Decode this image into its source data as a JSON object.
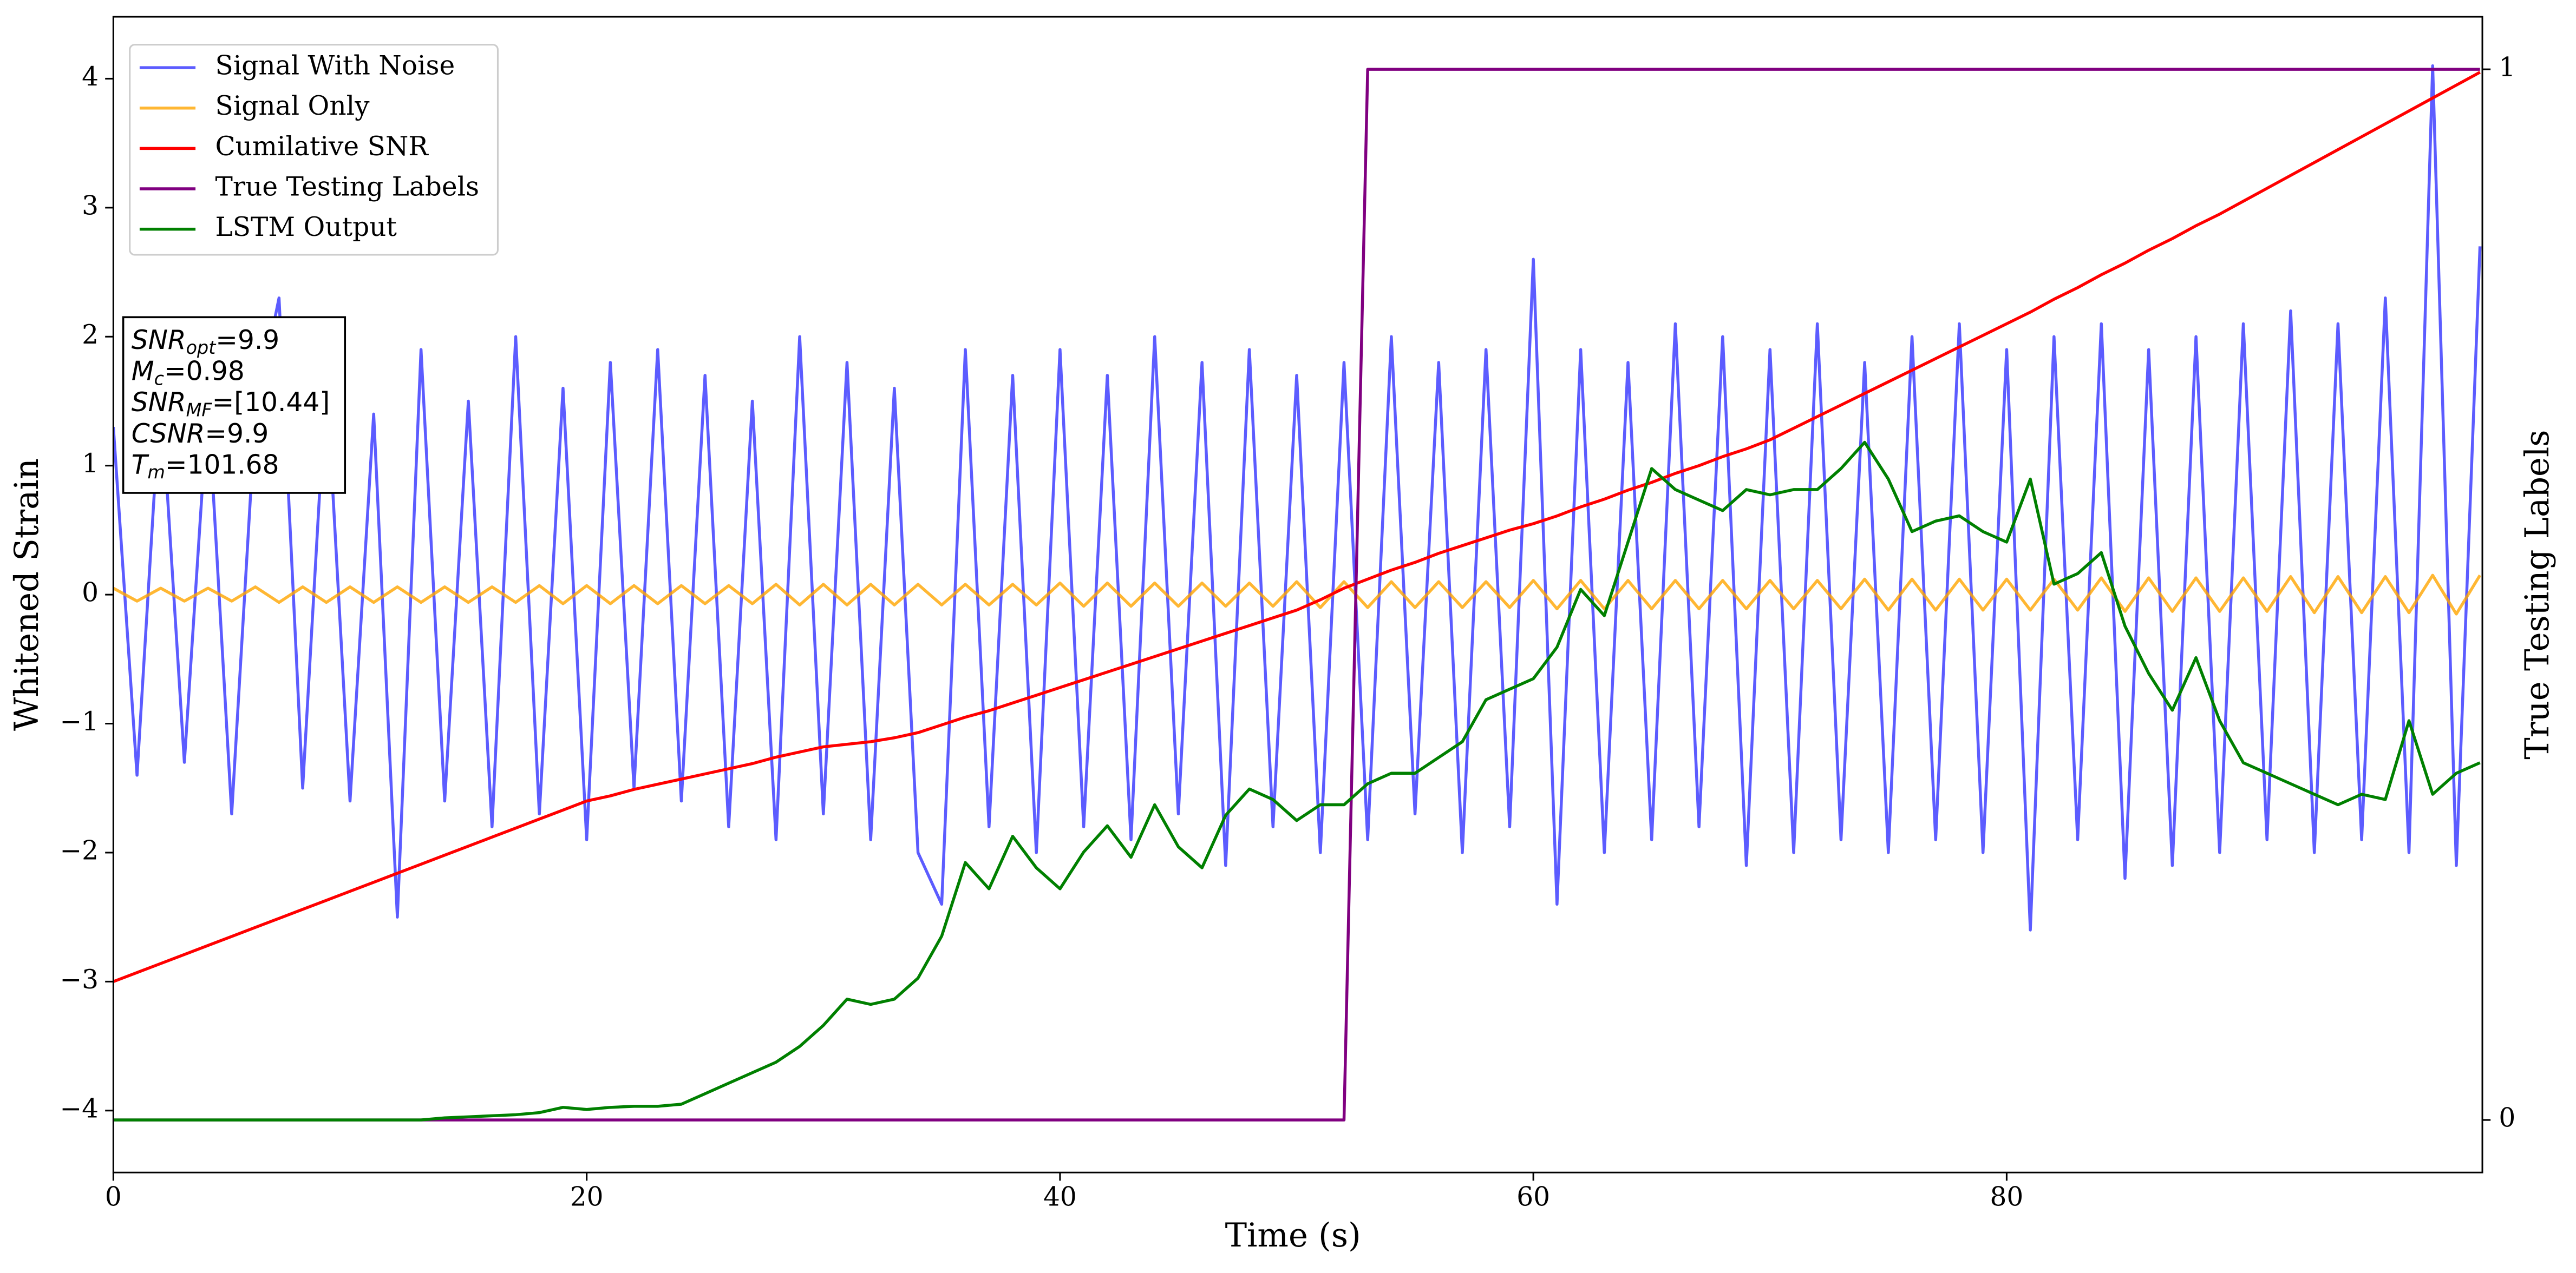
{
  "chart_data": {
    "type": "line",
    "xlabel": "Time (s)",
    "ylabel": "Whitened Strain",
    "y2label": "True Testing Labels",
    "x": [
      0,
      1,
      2,
      3,
      4,
      5,
      6,
      7,
      8,
      9,
      10,
      11,
      12,
      13,
      14,
      15,
      16,
      17,
      18,
      19,
      20,
      21,
      22,
      23,
      24,
      25,
      26,
      27,
      28,
      29,
      30,
      31,
      32,
      33,
      34,
      35,
      36,
      37,
      38,
      39,
      40,
      41,
      42,
      43,
      44,
      45,
      46,
      47,
      48,
      49,
      50,
      51,
      52,
      53,
      54,
      55,
      56,
      57,
      58,
      59,
      60,
      61,
      62,
      63,
      64,
      65,
      66,
      67,
      68,
      69,
      70,
      71,
      72,
      73,
      74,
      75,
      76,
      77,
      78,
      79,
      80,
      81,
      82,
      83,
      84,
      85,
      86,
      87,
      88,
      89,
      90,
      91,
      92,
      93,
      94,
      95,
      96,
      97,
      98,
      99,
      100
    ],
    "series": [
      {
        "name": "Signal With Noise",
        "color": "#3333ff",
        "values": [
          1.3,
          -1.4,
          1.6,
          -1.3,
          1.5,
          -1.7,
          1.4,
          2.3,
          -1.5,
          1.7,
          -1.6,
          1.4,
          -2.5,
          1.9,
          -1.6,
          1.5,
          -1.8,
          2.0,
          -1.7,
          1.6,
          -1.9,
          1.8,
          -1.5,
          1.9,
          -1.6,
          1.7,
          -1.8,
          1.5,
          -1.9,
          2.0,
          -1.7,
          1.8,
          -1.9,
          1.6,
          -2.0,
          -2.4,
          1.9,
          -1.8,
          1.7,
          -2.0,
          1.9,
          -1.8,
          1.7,
          -1.9,
          2.0,
          -1.7,
          1.8,
          -2.1,
          1.9,
          -1.8,
          1.7,
          -2.0,
          1.8,
          -1.9,
          2.0,
          -1.7,
          1.8,
          -2.0,
          1.9,
          -1.8,
          2.6,
          -2.4,
          1.9,
          -2.0,
          1.8,
          -1.9,
          2.1,
          -1.8,
          2.0,
          -2.1,
          1.9,
          -2.0,
          2.1,
          -1.9,
          1.8,
          -2.0,
          2.0,
          -1.9,
          2.1,
          -2.0,
          1.9,
          -2.6,
          2.0,
          -1.9,
          2.1,
          -2.2,
          1.9,
          -2.1,
          2.0,
          -2.0,
          2.1,
          -1.9,
          2.2,
          -2.0,
          2.1,
          -1.9,
          2.3,
          -2.0,
          4.1,
          -2.1,
          2.7
        ]
      },
      {
        "name": "Signal Only",
        "color": "#ffa500",
        "values": [
          0.05,
          -0.05,
          0.05,
          -0.05,
          0.05,
          -0.05,
          0.06,
          -0.06,
          0.06,
          -0.06,
          0.06,
          -0.06,
          0.06,
          -0.06,
          0.06,
          -0.06,
          0.06,
          -0.06,
          0.07,
          -0.07,
          0.07,
          -0.07,
          0.07,
          -0.07,
          0.07,
          -0.07,
          0.07,
          -0.07,
          0.08,
          -0.08,
          0.08,
          -0.08,
          0.08,
          -0.08,
          0.08,
          -0.08,
          0.08,
          -0.08,
          0.08,
          -0.08,
          0.09,
          -0.09,
          0.09,
          -0.09,
          0.09,
          -0.09,
          0.09,
          -0.09,
          0.09,
          -0.09,
          0.1,
          -0.1,
          0.1,
          -0.1,
          0.1,
          -0.1,
          0.1,
          -0.1,
          0.1,
          -0.1,
          0.11,
          -0.11,
          0.11,
          -0.11,
          0.11,
          -0.11,
          0.11,
          -0.11,
          0.11,
          -0.11,
          0.11,
          -0.11,
          0.11,
          -0.11,
          0.12,
          -0.12,
          0.12,
          -0.12,
          0.12,
          -0.12,
          0.12,
          -0.12,
          0.12,
          -0.12,
          0.13,
          -0.13,
          0.13,
          -0.13,
          0.13,
          -0.13,
          0.13,
          -0.13,
          0.14,
          -0.14,
          0.14,
          -0.14,
          0.14,
          -0.14,
          0.15,
          -0.15,
          0.15
        ]
      },
      {
        "name": "Cumilative SNR",
        "color": "#ff0000",
        "values": [
          -3.0,
          -2.93,
          -2.86,
          -2.79,
          -2.72,
          -2.65,
          -2.58,
          -2.51,
          -2.44,
          -2.37,
          -2.3,
          -2.23,
          -2.16,
          -2.09,
          -2.02,
          -1.95,
          -1.88,
          -1.81,
          -1.74,
          -1.67,
          -1.6,
          -1.56,
          -1.51,
          -1.47,
          -1.43,
          -1.39,
          -1.35,
          -1.31,
          -1.26,
          -1.22,
          -1.18,
          -1.16,
          -1.14,
          -1.11,
          -1.07,
          -1.01,
          -0.95,
          -0.9,
          -0.84,
          -0.78,
          -0.72,
          -0.66,
          -0.6,
          -0.54,
          -0.48,
          -0.42,
          -0.36,
          -0.3,
          -0.24,
          -0.18,
          -0.12,
          -0.04,
          0.05,
          0.12,
          0.19,
          0.25,
          0.32,
          0.38,
          0.44,
          0.5,
          0.55,
          0.61,
          0.68,
          0.74,
          0.81,
          0.87,
          0.94,
          1.0,
          1.07,
          1.13,
          1.2,
          1.29,
          1.38,
          1.47,
          1.56,
          1.65,
          1.74,
          1.83,
          1.92,
          2.01,
          2.1,
          2.19,
          2.29,
          2.38,
          2.48,
          2.57,
          2.67,
          2.76,
          2.86,
          2.95,
          3.05,
          3.15,
          3.25,
          3.35,
          3.45,
          3.55,
          3.65,
          3.75,
          3.85,
          3.95,
          4.05
        ]
      },
      {
        "name": "True Testing Labels",
        "color": "#800080",
        "axis": "y2",
        "values": [
          0,
          0,
          0,
          0,
          0,
          0,
          0,
          0,
          0,
          0,
          0,
          0,
          0,
          0,
          0,
          0,
          0,
          0,
          0,
          0,
          0,
          0,
          0,
          0,
          0,
          0,
          0,
          0,
          0,
          0,
          0,
          0,
          0,
          0,
          0,
          0,
          0,
          0,
          0,
          0,
          0,
          0,
          0,
          0,
          0,
          0,
          0,
          0,
          0,
          0,
          0,
          0,
          0,
          1,
          1,
          1,
          1,
          1,
          1,
          1,
          1,
          1,
          1,
          1,
          1,
          1,
          1,
          1,
          1,
          1,
          1,
          1,
          1,
          1,
          1,
          1,
          1,
          1,
          1,
          1,
          1,
          1,
          1,
          1,
          1,
          1,
          1,
          1,
          1,
          1,
          1,
          1,
          1,
          1,
          1,
          1,
          1,
          1,
          1,
          1,
          1
        ]
      },
      {
        "name": "LSTM Output",
        "color": "#008000",
        "axis": "y2",
        "values": [
          0,
          0,
          0,
          0,
          0,
          0,
          0,
          0,
          0,
          0,
          0,
          0,
          0,
          0,
          0.002,
          0.003,
          0.004,
          0.005,
          0.007,
          0.012,
          0.01,
          0.012,
          0.013,
          0.013,
          0.015,
          0.025,
          0.035,
          0.045,
          0.055,
          0.07,
          0.09,
          0.115,
          0.11,
          0.115,
          0.135,
          0.175,
          0.245,
          0.22,
          0.27,
          0.24,
          0.22,
          0.255,
          0.28,
          0.25,
          0.3,
          0.26,
          0.24,
          0.29,
          0.315,
          0.305,
          0.285,
          0.3,
          0.3,
          0.32,
          0.33,
          0.33,
          0.345,
          0.36,
          0.4,
          0.41,
          0.42,
          0.45,
          0.505,
          0.48,
          0.55,
          0.62,
          0.6,
          0.59,
          0.58,
          0.6,
          0.595,
          0.6,
          0.6,
          0.62,
          0.645,
          0.61,
          0.56,
          0.57,
          0.575,
          0.56,
          0.55,
          0.61,
          0.51,
          0.52,
          0.54,
          0.47,
          0.425,
          0.39,
          0.44,
          0.38,
          0.34,
          0.33,
          0.32,
          0.31,
          0.3,
          0.31,
          0.305,
          0.38,
          0.31,
          0.33,
          0.34
        ]
      }
    ],
    "xlim": [
      0,
      100.1
    ],
    "xticks": [
      0,
      20,
      40,
      60,
      80
    ],
    "ylim": [
      -4.48,
      4.48
    ],
    "yticks": [
      {
        "value": -4,
        "label": "−4"
      },
      {
        "value": -3,
        "label": "−3"
      },
      {
        "value": -2,
        "label": "−2"
      },
      {
        "value": -1,
        "label": "−1"
      },
      0,
      1,
      2,
      3,
      4
    ],
    "y2lim": [
      -0.05,
      1.05
    ],
    "y2ticks": [
      0,
      1
    ],
    "grid": false,
    "legend": "upper left",
    "annotations": [
      {
        "text": "SNR",
        "sub": "opt",
        "rest": "=9.9"
      },
      {
        "text": "M",
        "sub": "c",
        "rest": "=0.98"
      },
      {
        "text": "SNR",
        "sub": "MF",
        "rest": "=[10.44]"
      },
      {
        "text": "CSNR",
        "rest": "=9.9"
      },
      {
        "text": "T",
        "sub": "m",
        "rest": "=101.68"
      }
    ]
  }
}
